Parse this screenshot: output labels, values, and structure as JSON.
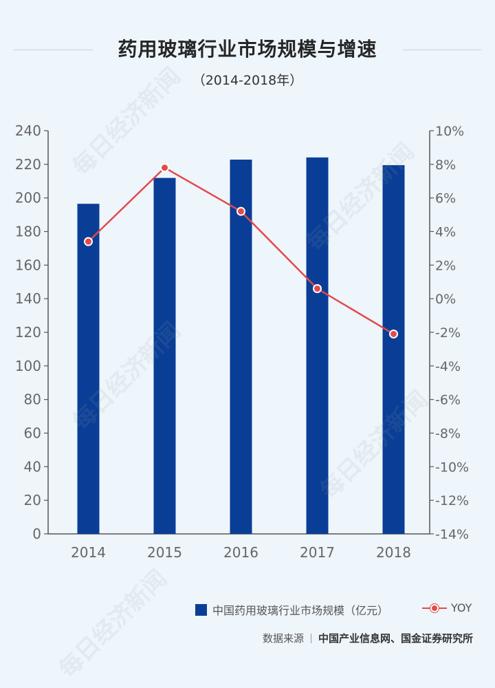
{
  "title": "药用玻璃行业市场规模与增速",
  "subtitle": "（2014-2018年）",
  "legend": {
    "bar_label": "中国药用玻璃行业市场规模（亿元）",
    "line_label": "YOY"
  },
  "source": {
    "label": "数据来源",
    "org": "中国产业信息网、国金证券研究所"
  },
  "watermark": "每日经济新闻",
  "colors": {
    "bar": "#0a3e96",
    "line": "#e24a4a",
    "background": "#eef5fb"
  },
  "chart_data": {
    "type": "bar",
    "categories": [
      "2014",
      "2015",
      "2016",
      "2017",
      "2018"
    ],
    "series": [
      {
        "name": "中国药用玻璃行业市场规模（亿元）",
        "type": "bar",
        "axis": "left",
        "values": [
          196.5,
          211.9,
          222.8,
          224.1,
          219.5
        ]
      },
      {
        "name": "YOY",
        "type": "line",
        "axis": "right",
        "values": [
          3.4,
          7.8,
          5.2,
          0.6,
          -2.1
        ]
      }
    ],
    "y_left": {
      "min": 0,
      "max": 240,
      "step": 20,
      "ticks": [
        "0",
        "20",
        "40",
        "60",
        "80",
        "100",
        "120",
        "140",
        "160",
        "180",
        "200",
        "220",
        "240"
      ]
    },
    "y_right": {
      "min": -14,
      "max": 10,
      "step": 2,
      "ticks": [
        "-14%",
        "-12%",
        "-10%",
        "-8%",
        "-6%",
        "-4%",
        "-2%",
        "0%",
        "2%",
        "4%",
        "6%",
        "8%",
        "10%"
      ]
    },
    "grid": false,
    "legend_position": "bottom-right"
  }
}
